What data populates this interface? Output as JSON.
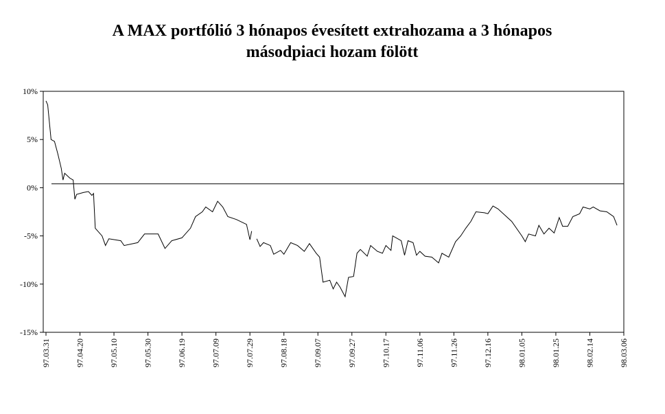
{
  "chart_data": {
    "type": "line",
    "title": [
      "A MAX portfólió 3 hónapos évesített extrahozama a 3 hónapos",
      "másodpiaci hozam fölött"
    ],
    "x": [
      "97.03.31",
      "97.04.01",
      "97.04.03",
      "97.04.05",
      "97.04.07",
      "97.04.09",
      "97.04.10",
      "97.04.11",
      "97.04.14",
      "97.04.16",
      "97.04.17",
      "97.04.18",
      "97.04.22",
      "97.04.25",
      "97.04.27",
      "97.04.28",
      "97.04.29",
      "97.05.03",
      "97.05.05",
      "97.05.07",
      "97.05.14",
      "97.05.16",
      "97.05.24",
      "97.05.28",
      "97.06.05",
      "97.06.09",
      "97.06.13",
      "97.06.19",
      "97.06.24",
      "97.06.27",
      "97.07.01",
      "97.07.03",
      "97.07.07",
      "97.07.10",
      "97.07.13",
      "97.07.16",
      "97.07.21",
      "97.07.27",
      "97.07.29",
      "97.07.30",
      "97.08.01",
      "97.08.02",
      "97.08.04",
      "97.08.06",
      "97.08.10",
      "97.08.12",
      "97.08.16",
      "97.08.18",
      "97.08.22",
      "97.08.26",
      "97.08.30",
      "97.09.02",
      "97.09.06",
      "97.09.08",
      "97.09.10",
      "97.09.14",
      "97.09.16",
      "97.09.18",
      "97.09.20",
      "97.09.23",
      "97.09.25",
      "97.09.28",
      "97.09.30",
      "97.10.02",
      "97.10.06",
      "97.10.08",
      "97.10.12",
      "97.10.15",
      "97.10.17",
      "97.10.20",
      "97.10.21",
      "97.10.26",
      "97.10.28",
      "97.10.30",
      "97.11.02",
      "97.11.04",
      "97.11.06",
      "97.11.09",
      "97.11.13",
      "97.11.17",
      "97.11.19",
      "97.11.23",
      "97.11.27",
      "97.11.30",
      "97.12.03",
      "97.12.06",
      "97.12.09",
      "97.12.14",
      "97.12.16",
      "97.12.19",
      "97.12.22",
      "97.12.30",
      "98.01.05",
      "98.01.07",
      "98.01.09",
      "98.01.13",
      "98.01.15",
      "98.01.18",
      "98.01.21",
      "98.01.24",
      "98.01.27",
      "98.01.29",
      "98.02.01",
      "98.02.04",
      "98.02.08",
      "98.02.10",
      "98.02.14",
      "98.02.16",
      "98.02.20",
      "98.02.24",
      "98.02.28",
      "98.03.02"
    ],
    "series": [
      {
        "color": "#000000",
        "values": [
          9,
          8.6,
          5,
          4.8,
          3.5,
          2,
          0.8,
          1.5,
          1.0,
          0.8,
          -1.2,
          -0.7,
          -0.5,
          -0.4,
          -0.8,
          -0.6,
          -4.2,
          -5,
          -6,
          -5.3,
          -5.5,
          -6,
          -5.7,
          -4.8,
          -4.8,
          -6.3,
          -5.5,
          -5.2,
          -4.2,
          -3,
          -2.5,
          -2,
          -2.5,
          -1.4,
          -2,
          -3,
          -3.3,
          -3.8,
          -5.4,
          -4.5,
          null,
          -5.3,
          -6.1,
          -5.7,
          -6,
          -6.9,
          -6.5,
          -6.9,
          -5.7,
          -6,
          -6.6,
          -5.8,
          -6.8,
          -7.2,
          -9.8,
          -9.6,
          -10.5,
          -9.8,
          -10.3,
          -11.3,
          -9.3,
          -9.2,
          -6.8,
          -6.4,
          -7.1,
          -6,
          -6.6,
          -6.8,
          -6,
          -6.5,
          -5,
          -5.5,
          -7,
          -5.5,
          -5.7,
          -7,
          -6.6,
          -7.1,
          -7.2,
          -7.8,
          -6.8,
          -7.2,
          -5.6,
          -5,
          -4.2,
          -3.5,
          -2.5,
          -2.6,
          -2.7,
          -1.9,
          -2.2,
          -3.5,
          -5,
          -5.6,
          -4.8,
          -5,
          -3.9,
          -4.8,
          -4.2,
          -4.7,
          -3.1,
          -4,
          -4,
          -3,
          -2.7,
          -2,
          -2.2,
          -2,
          -2.4,
          -2.5,
          -3,
          -3.9
        ]
      }
    ],
    "reference_line": 0.4,
    "xlim": [
      "97.03.31",
      "98.03.06"
    ],
    "xticks": [
      "97.03.31",
      "97.04.20",
      "97.05.10",
      "97.05.30",
      "97.06.19",
      "97.07.09",
      "97.07.29",
      "97.08.18",
      "97.09.07",
      "97.09.27",
      "97.10.17",
      "97.11.06",
      "97.11.26",
      "97.12.16",
      "98.01.05",
      "98.01.25",
      "98.02.14",
      "98.03.06"
    ],
    "ylim": [
      -15,
      10
    ],
    "yticks": [
      {
        "value": -15,
        "label": "-15%"
      },
      {
        "value": -10,
        "label": "-10%"
      },
      {
        "value": -5,
        "label": "-5%"
      },
      {
        "value": 0,
        "label": "0%"
      },
      {
        "value": 5,
        "label": "5%"
      },
      {
        "value": 10,
        "label": "10%"
      }
    ]
  }
}
